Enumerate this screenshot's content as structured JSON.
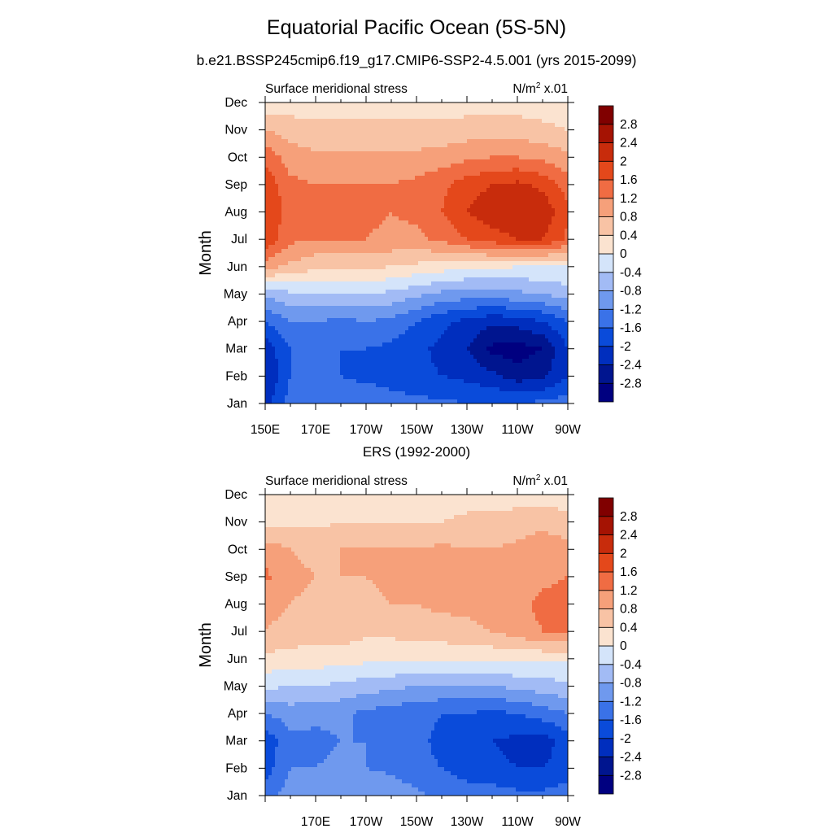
{
  "header": {
    "title": "Equatorial Pacific Ocean (5S-5N)",
    "subtitle": "b.e21.BSSP245cmip6.f19_g17.CMIP6-SSP2-4.5.001 (yrs 2015-2099)"
  },
  "chart_data": [
    {
      "type": "heatmap",
      "name": "model",
      "panel_title": "",
      "left_label": "Surface meridional stress",
      "units_base": "N/m",
      "units_sup": "2",
      "units_scale": " x.01",
      "ylabel": "Month",
      "xlabel": "",
      "y_ticks": [
        "Jan",
        "Feb",
        "Mar",
        "Apr",
        "May",
        "Jun",
        "Jul",
        "Aug",
        "Sep",
        "Oct",
        "Nov",
        "Dec"
      ],
      "x_ticks": [
        "150E",
        "170E",
        "170W",
        "150W",
        "130W",
        "110W",
        "90W"
      ],
      "x_range_deg": [
        150,
        270
      ],
      "x_grid": [
        150,
        160,
        170,
        180,
        190,
        200,
        210,
        220,
        230,
        240,
        250,
        260,
        270
      ],
      "z": [
        [
          -2.2,
          -1.4,
          -1.2,
          -1.3,
          -1.3,
          -1.4,
          -1.5,
          -1.5,
          -1.6,
          -1.6,
          -1.6,
          -1.5,
          -1.4
        ],
        [
          -2.4,
          -1.6,
          -1.6,
          -1.6,
          -1.7,
          -1.8,
          -1.9,
          -2.0,
          -2.1,
          -2.3,
          -2.6,
          -2.5,
          -2.0
        ],
        [
          -2.3,
          -1.6,
          -1.6,
          -1.6,
          -1.6,
          -1.7,
          -1.9,
          -2.1,
          -2.4,
          -2.9,
          -3.0,
          -2.8,
          -2.0
        ],
        [
          -1.6,
          -1.2,
          -1.2,
          -1.3,
          -1.2,
          -1.3,
          -1.6,
          -1.9,
          -2.1,
          -2.3,
          -2.2,
          -2.0,
          -1.6
        ],
        [
          -0.7,
          -0.5,
          -0.4,
          -0.4,
          -0.4,
          -0.5,
          -0.7,
          -0.9,
          -1.0,
          -1.0,
          -0.9,
          -0.8,
          -0.6
        ],
        [
          1.0,
          0.7,
          0.5,
          0.5,
          0.5,
          0.4,
          0.3,
          0.2,
          0.1,
          0.1,
          0.0,
          0.0,
          0.0
        ],
        [
          1.9,
          1.3,
          1.2,
          1.2,
          1.2,
          1.1,
          1.1,
          1.3,
          1.6,
          1.8,
          2.0,
          2.0,
          1.5
        ],
        [
          2.0,
          1.4,
          1.3,
          1.3,
          1.3,
          1.2,
          1.3,
          1.6,
          2.0,
          2.3,
          2.4,
          2.3,
          1.7
        ],
        [
          1.9,
          1.3,
          1.2,
          1.2,
          1.2,
          1.2,
          1.3,
          1.5,
          1.8,
          2.0,
          2.1,
          1.9,
          1.4
        ],
        [
          1.5,
          1.0,
          0.9,
          0.9,
          0.9,
          0.9,
          0.9,
          1.0,
          1.1,
          1.2,
          1.2,
          1.1,
          0.9
        ],
        [
          0.8,
          0.6,
          0.5,
          0.5,
          0.5,
          0.5,
          0.5,
          0.5,
          0.6,
          0.6,
          0.6,
          0.5,
          0.4
        ],
        [
          0.0,
          0.2,
          0.2,
          0.2,
          0.2,
          0.2,
          0.2,
          0.2,
          0.2,
          0.2,
          0.2,
          0.2,
          0.1
        ]
      ],
      "colorbar_levels": [
        "-2.8",
        "-2.4",
        "-2",
        "-1.6",
        "-1.2",
        "-0.8",
        "-0.4",
        "0",
        "0.4",
        "0.8",
        "1.2",
        "1.6",
        "2",
        "2.4",
        "2.8"
      ]
    },
    {
      "type": "heatmap",
      "name": "observed",
      "panel_title": "ERS (1992-2000)",
      "left_label": "Surface meridional stress",
      "units_base": "N/m",
      "units_sup": "2",
      "units_scale": " x.01",
      "ylabel": "Month",
      "xlabel": "",
      "y_ticks": [
        "Jan",
        "Feb",
        "Mar",
        "Apr",
        "May",
        "Jun",
        "Jul",
        "Aug",
        "Sep",
        "Oct",
        "Nov",
        "Dec"
      ],
      "x_ticks": [
        "",
        "170E",
        "170W",
        "150W",
        "130W",
        "110W",
        "90W"
      ],
      "x_range_deg": [
        150,
        270
      ],
      "x_grid": [
        150,
        160,
        170,
        180,
        190,
        200,
        210,
        220,
        230,
        240,
        250,
        260,
        270
      ],
      "z": [
        [
          -1.4,
          -1.0,
          -0.9,
          -0.8,
          -0.8,
          -0.9,
          -1.1,
          -1.3,
          -1.4,
          -1.4,
          -1.5,
          -1.5,
          -1.4
        ],
        [
          -1.8,
          -1.2,
          -1.2,
          -1.1,
          -1.2,
          -1.3,
          -1.5,
          -1.6,
          -1.8,
          -1.9,
          -2.0,
          -2.0,
          -1.8
        ],
        [
          -1.9,
          -1.3,
          -1.3,
          -1.2,
          -1.2,
          -1.3,
          -1.5,
          -1.7,
          -1.9,
          -2.0,
          -2.1,
          -2.2,
          -1.8
        ],
        [
          -1.2,
          -1.0,
          -1.1,
          -1.1,
          -1.3,
          -1.4,
          -1.5,
          -1.6,
          -1.6,
          -1.7,
          -1.6,
          -1.4,
          -1.2
        ],
        [
          -0.3,
          -0.4,
          -0.4,
          -0.5,
          -0.6,
          -0.7,
          -0.8,
          -0.8,
          -0.8,
          -0.8,
          -0.7,
          -0.6,
          -0.5
        ],
        [
          0.3,
          0.2,
          0.2,
          0.2,
          0.1,
          0.1,
          0.1,
          0.1,
          0.1,
          0.1,
          0.1,
          0.1,
          0.1
        ],
        [
          0.8,
          0.7,
          0.6,
          0.6,
          0.5,
          0.5,
          0.6,
          0.6,
          0.7,
          0.8,
          1.0,
          1.2,
          1.3
        ],
        [
          0.9,
          0.8,
          0.7,
          0.8,
          0.7,
          0.8,
          0.8,
          0.9,
          0.9,
          1.0,
          1.1,
          1.3,
          1.4
        ],
        [
          1.3,
          0.9,
          0.8,
          0.8,
          0.8,
          0.9,
          0.9,
          1.0,
          0.9,
          0.9,
          1.0,
          1.1,
          1.2
        ],
        [
          1.0,
          0.8,
          0.7,
          0.8,
          0.8,
          0.8,
          0.8,
          0.9,
          0.8,
          0.8,
          0.9,
          1.0,
          1.0
        ],
        [
          0.3,
          0.3,
          0.3,
          0.4,
          0.4,
          0.4,
          0.4,
          0.4,
          0.5,
          0.5,
          0.6,
          0.7,
          0.5
        ],
        [
          0.2,
          0.1,
          0.1,
          0.1,
          0.0,
          0.0,
          0.1,
          0.1,
          0.2,
          0.2,
          0.2,
          0.2,
          0.2
        ]
      ],
      "colorbar_levels": [
        "-2.8",
        "-2.4",
        "-2",
        "-1.6",
        "-1.2",
        "-0.8",
        "-0.4",
        "0",
        "0.4",
        "0.8",
        "1.2",
        "1.6",
        "2",
        "2.4",
        "2.8"
      ]
    }
  ],
  "colormap": [
    "#000080",
    "#00158F",
    "#002EBE",
    "#0A4BDA",
    "#3A72E8",
    "#6F99EE",
    "#A2BBF5",
    "#D4E4FA",
    "#FBE3D0",
    "#F8C3A5",
    "#F6A07A",
    "#F06C43",
    "#E4481B",
    "#C82C0C",
    "#A51303",
    "#800000"
  ]
}
